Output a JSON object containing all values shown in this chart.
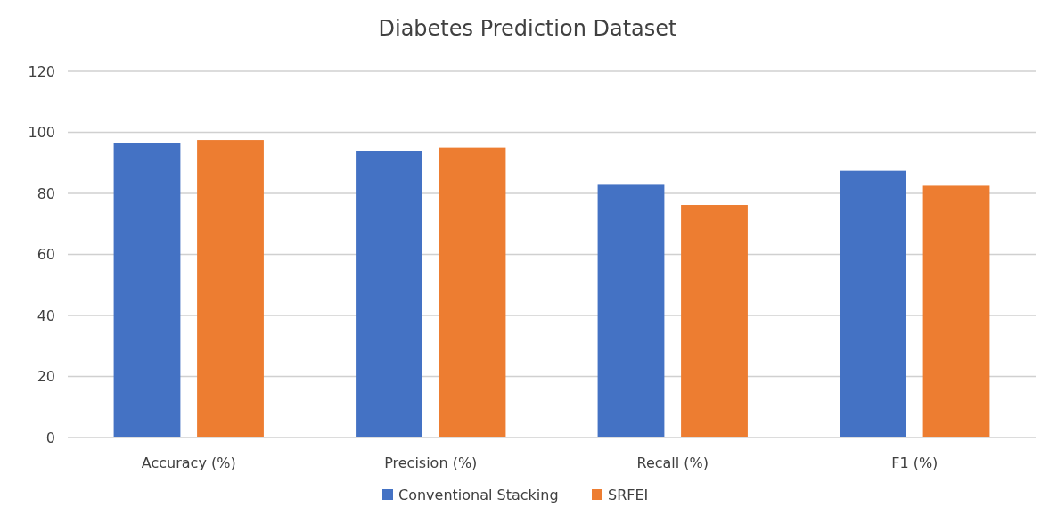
{
  "chart_data": {
    "type": "bar",
    "title": "Diabetes Prediction Dataset",
    "categories": [
      "Accuracy (%)",
      "Precision (%)",
      "Recall (%)",
      "F1 (%)"
    ],
    "series": [
      {
        "name": "Conventional Stacking",
        "color": "#4472c4",
        "values": [
          96.5,
          94.0,
          82.8,
          87.4
        ]
      },
      {
        "name": "SRFEI",
        "color": "#ed7d31",
        "values": [
          97.5,
          95.0,
          76.2,
          82.5
        ]
      }
    ],
    "ylim": [
      0,
      120
    ],
    "yticks": [
      0,
      20,
      40,
      60,
      80,
      100,
      120
    ],
    "grid": "y",
    "legend": "bottom"
  }
}
